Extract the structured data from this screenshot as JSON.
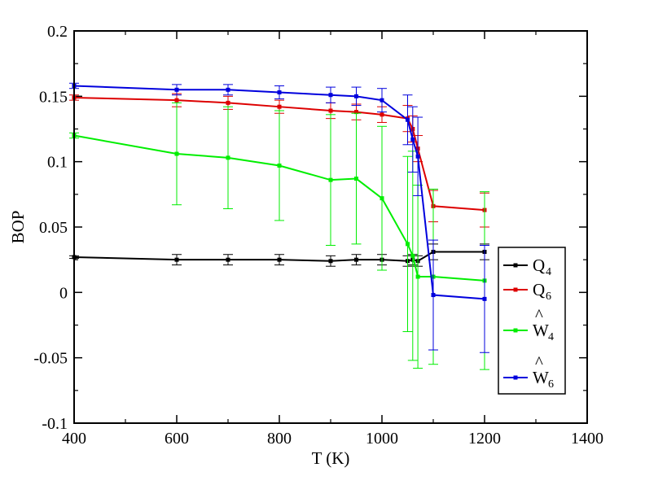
{
  "chart_data": {
    "type": "line",
    "title": "",
    "xlabel": "T (K)",
    "ylabel": "BOP",
    "xlim": [
      400,
      1400
    ],
    "ylim": [
      -0.1,
      0.2
    ],
    "x_ticks": [
      "400",
      "600",
      "800",
      "1000",
      "1200",
      "1400"
    ],
    "y_ticks": [
      "-0.1",
      "-0.05",
      "0",
      "0.05",
      "0.1",
      "0.15",
      "0.2"
    ],
    "grid": false,
    "legend_position": "right",
    "series": [
      {
        "name": "Q",
        "name_subscript": "4",
        "color": "#000000",
        "x": [
          400,
          600,
          700,
          800,
          900,
          950,
          1000,
          1050,
          1060,
          1070,
          1100,
          1200
        ],
        "y": [
          0.027,
          0.025,
          0.025,
          0.025,
          0.024,
          0.025,
          0.025,
          0.024,
          0.025,
          0.024,
          0.031,
          0.031
        ],
        "err": [
          0.001,
          0.004,
          0.004,
          0.004,
          0.004,
          0.004,
          0.004,
          0.004,
          0.004,
          0.004,
          0.006,
          0.006
        ]
      },
      {
        "name": "Q",
        "name_subscript": "6",
        "color": "#dd0000",
        "x": [
          400,
          600,
          700,
          800,
          900,
          950,
          1000,
          1050,
          1060,
          1070,
          1100,
          1200
        ],
        "y": [
          0.149,
          0.147,
          0.145,
          0.142,
          0.139,
          0.138,
          0.136,
          0.133,
          0.125,
          0.11,
          0.066,
          0.063
        ],
        "err": [
          0.002,
          0.005,
          0.005,
          0.005,
          0.006,
          0.006,
          0.006,
          0.01,
          0.01,
          0.01,
          0.012,
          0.013
        ]
      },
      {
        "name": "W",
        "name_accent": "^",
        "name_subscript": "4",
        "color": "#00ee00",
        "x": [
          400,
          600,
          700,
          800,
          900,
          950,
          1000,
          1050,
          1060,
          1070,
          1100,
          1200
        ],
        "y": [
          0.12,
          0.106,
          0.103,
          0.097,
          0.086,
          0.087,
          0.072,
          0.037,
          0.028,
          0.012,
          0.012,
          0.009
        ],
        "err": [
          0.002,
          0.039,
          0.039,
          0.042,
          0.05,
          0.05,
          0.055,
          0.067,
          0.08,
          0.07,
          0.067,
          0.068
        ]
      },
      {
        "name": "W",
        "name_accent": "^",
        "name_subscript": "6",
        "color": "#0000dd",
        "x": [
          400,
          600,
          700,
          800,
          900,
          950,
          1000,
          1050,
          1060,
          1070,
          1100,
          1200
        ],
        "y": [
          0.158,
          0.155,
          0.155,
          0.153,
          0.151,
          0.15,
          0.147,
          0.132,
          0.117,
          0.104,
          -0.002,
          -0.005
        ],
        "err": [
          0.002,
          0.004,
          0.004,
          0.005,
          0.006,
          0.007,
          0.009,
          0.019,
          0.025,
          0.03,
          0.042,
          0.041
        ]
      }
    ]
  }
}
